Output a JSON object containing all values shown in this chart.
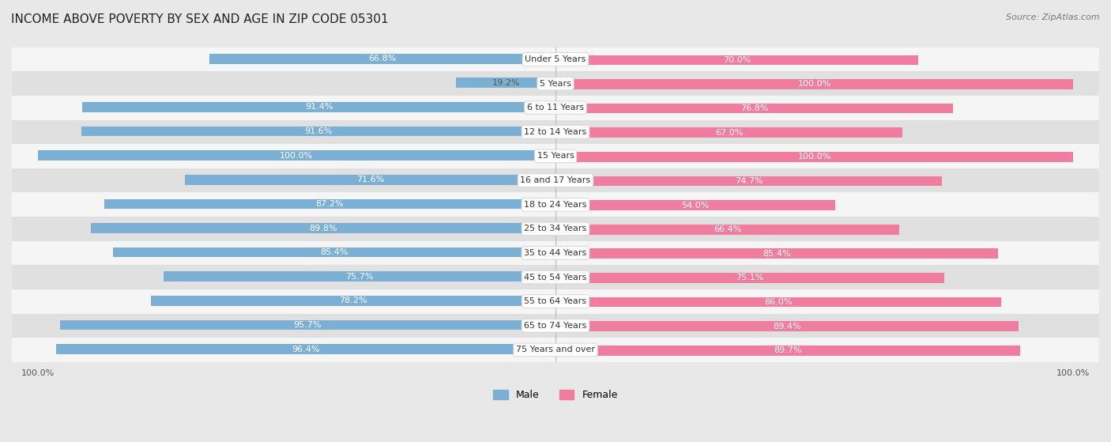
{
  "title": "INCOME ABOVE POVERTY BY SEX AND AGE IN ZIP CODE 05301",
  "source": "Source: ZipAtlas.com",
  "categories": [
    "Under 5 Years",
    "5 Years",
    "6 to 11 Years",
    "12 to 14 Years",
    "15 Years",
    "16 and 17 Years",
    "18 to 24 Years",
    "25 to 34 Years",
    "35 to 44 Years",
    "45 to 54 Years",
    "55 to 64 Years",
    "65 to 74 Years",
    "75 Years and over"
  ],
  "male_values": [
    66.8,
    19.2,
    91.4,
    91.6,
    100.0,
    71.6,
    87.2,
    89.8,
    85.4,
    75.7,
    78.2,
    95.7,
    96.4
  ],
  "female_values": [
    70.0,
    100.0,
    76.8,
    67.0,
    100.0,
    74.7,
    54.0,
    66.4,
    85.4,
    75.1,
    86.0,
    89.4,
    89.7
  ],
  "male_color": "#7bafd4",
  "female_color": "#f07ca0",
  "female_color_light": "#f9c0d0",
  "male_label": "Male",
  "female_label": "Female",
  "bg_color": "#e8e8e8",
  "row_bg_light": "#f5f5f5",
  "row_bg_dark": "#e0e0e0",
  "bar_height": 0.55,
  "title_fontsize": 11,
  "label_fontsize": 8,
  "cat_fontsize": 8,
  "tick_fontsize": 8,
  "source_fontsize": 8
}
